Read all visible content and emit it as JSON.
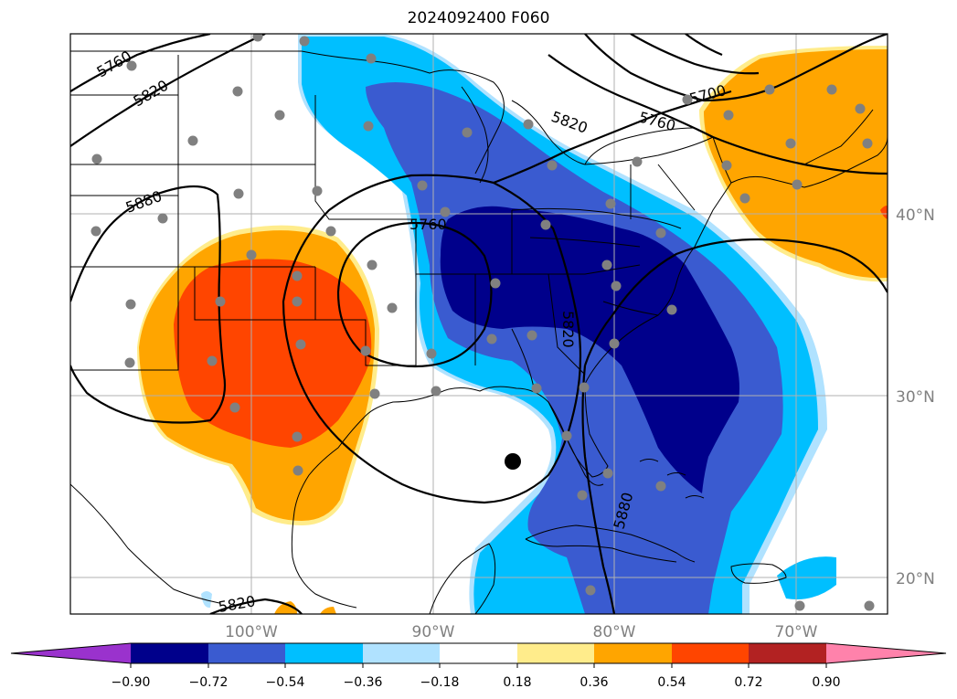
{
  "title": "2024092400 F060",
  "colors": {
    "c_m5": "#9a32cd",
    "c_m4": "#00008b",
    "c_m3": "#3a5bd0",
    "c_m2": "#00bfff",
    "c_m1": "#b0e2ff",
    "c_0": "#ffffff",
    "c_p1": "#ffec8b",
    "c_p2": "#ffa500",
    "c_p3": "#ff4500",
    "c_p4": "#b22222",
    "c_p5": "#ff82ab",
    "station": "#808080",
    "marker": "#000000",
    "grid": "#b0b0b0"
  },
  "lat_labels": [
    "40°N",
    "30°N",
    "20°N"
  ],
  "lon_labels": [
    "100°W",
    "90°W",
    "80°W",
    "70°W"
  ],
  "contour_labels": [
    "5760",
    "5820",
    "5880",
    "5760",
    "5820",
    "5820",
    "5880",
    "5820",
    "5700",
    "5760"
  ],
  "colorbar": {
    "ticks": [
      "−0.90",
      "−0.72",
      "−0.54",
      "−0.36",
      "−0.18",
      "0.18",
      "0.36",
      "0.54",
      "0.72",
      "0.90"
    ]
  }
}
